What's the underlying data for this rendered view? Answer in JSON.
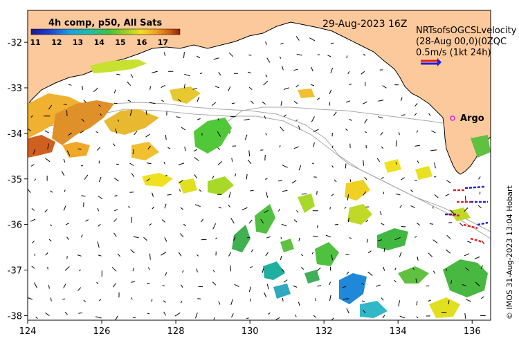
{
  "map": {
    "colorbar_title": "4h comp, p50, All Sats",
    "colorbar_ticks": [
      "11",
      "12",
      "13",
      "14",
      "15",
      "16",
      "17"
    ],
    "colorbar_range": [
      10.8,
      17.8
    ],
    "date": "29-Aug-2023 16Z",
    "legend_line1": "NRTsofsOGCSLvelocity",
    "legend_line2": "(28-Aug 00,0)(0ZQC",
    "legend_line3": "0.5m/s (1kt 24h)",
    "argo_label": "Argo",
    "credit": "© IMOS 31-Aug-2023 13:04 Hobart",
    "x_ticks": [
      "124",
      "126",
      "128",
      "130",
      "132",
      "134",
      "136"
    ],
    "x_values": [
      124,
      126,
      128,
      130,
      132,
      134,
      136
    ],
    "y_ticks": [
      "-32",
      "-33",
      "-34",
      "-35",
      "-36",
      "-37",
      "-38"
    ],
    "y_values": [
      -32,
      -33,
      -34,
      -35,
      -36,
      -37,
      -38
    ],
    "lon_range": [
      124,
      136.5
    ],
    "lat_range": [
      -38.1,
      -31.3
    ],
    "colors": {
      "land": "#fbc99b",
      "coast": "#000000",
      "bathymetry": "#a8a8a8",
      "arrow": "#000000",
      "argo": "#e020e0",
      "legend_arrow_red": "#e02020",
      "legend_arrow_blue": "#2020e0"
    }
  }
}
